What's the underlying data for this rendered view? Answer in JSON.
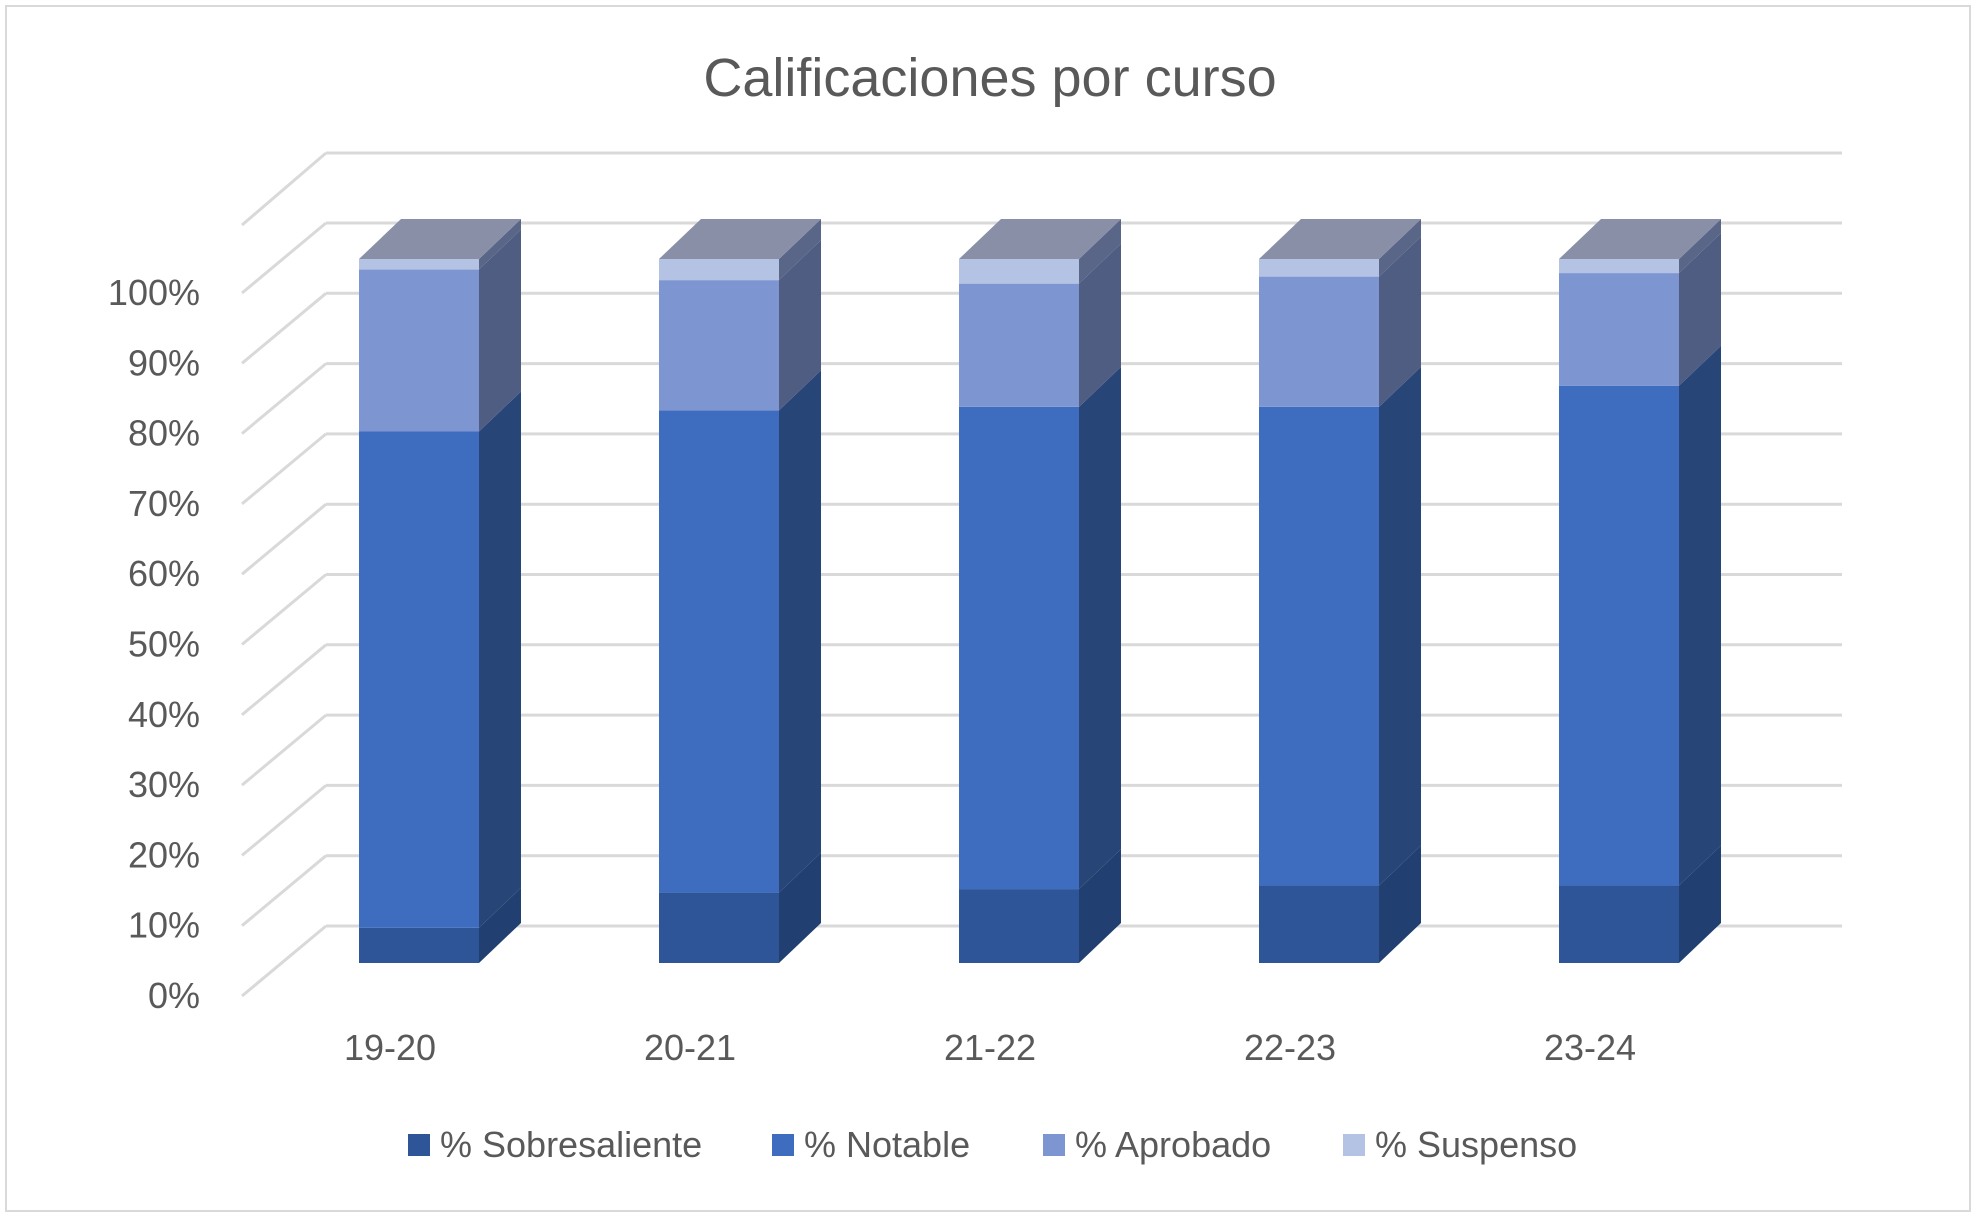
{
  "chart_data": {
    "type": "bar",
    "stacked": true,
    "percent_stacked": true,
    "three_d": true,
    "title": "Calificaciones por curso",
    "xlabel": "",
    "ylabel": "",
    "categories": [
      "19-20",
      "20-21",
      "21-22",
      "22-23",
      "23-24"
    ],
    "series": [
      {
        "name": "% Sobresaliente",
        "color": "#2e5597",
        "side_color": "#213f70",
        "values": [
          5,
          10,
          10.5,
          11,
          11
        ]
      },
      {
        "name": "% Notable",
        "color": "#3e6dbf",
        "side_color": "#274677",
        "values": [
          70.5,
          68.5,
          68.5,
          68,
          71
        ]
      },
      {
        "name": "% Aprobado",
        "color": "#7d95d1",
        "side_color": "#4f5d83",
        "values": [
          23,
          18.5,
          17.5,
          18.5,
          16
        ]
      },
      {
        "name": "% Suspenso",
        "color": "#b4c3e3",
        "side_color": "#5a6688",
        "values": [
          1.5,
          3,
          3.5,
          2.5,
          2
        ]
      }
    ],
    "y_ticks": [
      "0%",
      "10%",
      "20%",
      "30%",
      "40%",
      "50%",
      "60%",
      "70%",
      "80%",
      "90%",
      "100%"
    ],
    "ylim": [
      0,
      100
    ],
    "grid": true,
    "legend_position": "bottom",
    "colors": {
      "gridline": "#d9d9d9",
      "text": "#595959",
      "top_face": "#8a8fa8"
    }
  }
}
